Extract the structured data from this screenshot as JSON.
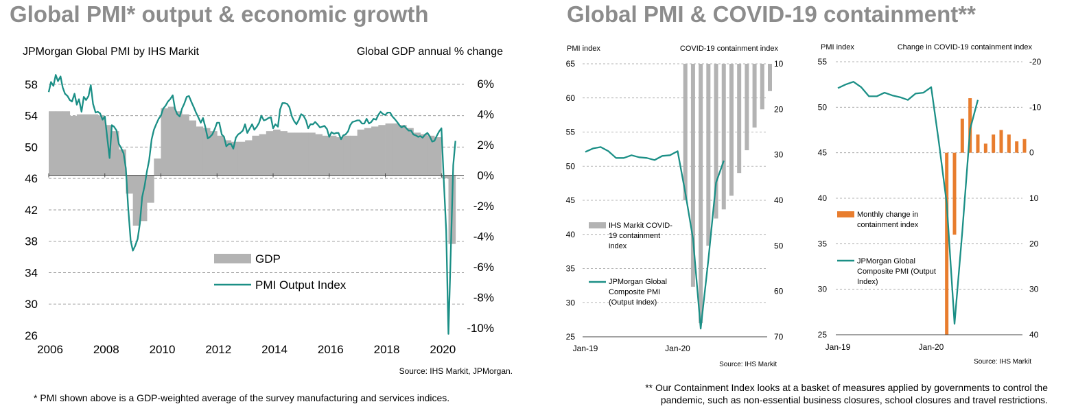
{
  "titles": {
    "left": "Global PMI* output & economic growth",
    "right": "Global PMI & COVID-19 containment**"
  },
  "footnotes": {
    "left": "* PMI shown above is a GDP-weighted average of the survey manufacturing and services indices.",
    "right_line1": "** Our Containment Index looks at a basket of measures applied by governments to control the",
    "right_line2": "pandemic, such as non-essential business closures, school closures and travel restrictions."
  },
  "colors": {
    "teal": "#1b8f86",
    "gray_bar": "#b3b3b3",
    "orange": "#e87d2e",
    "title": "#8c8c8c"
  },
  "chart_data": [
    {
      "type": "bar+line",
      "left_axis_title": "JPMorgan  Global PMI by IHS Markit",
      "right_axis_title": "Global GDP annual % change",
      "source": "Source: IHS Markit, JPMorgan.",
      "x_ticks": [
        "2006",
        "2008",
        "2010",
        "2012",
        "2014",
        "2016",
        "2018",
        "2020"
      ],
      "pmi_range": [
        26,
        60
      ],
      "pmi_ticks": [
        "58",
        "54",
        "50",
        "46",
        "42",
        "38",
        "34",
        "30",
        "26"
      ],
      "gdp_range": [
        -10.5,
        7
      ],
      "gdp_ticks": [
        "6%",
        "4%",
        "2%",
        "0%",
        "-2%",
        "-4%",
        "-6%",
        "-8%",
        "-10%"
      ],
      "legend": {
        "gdp": "GDP",
        "pmi": "PMI Output Index"
      },
      "gdp": {
        "x": [
          2006.0,
          2006.25,
          2006.5,
          2006.75,
          2007.0,
          2007.25,
          2007.5,
          2007.75,
          2008.0,
          2008.25,
          2008.5,
          2008.75,
          2009.0,
          2009.25,
          2009.5,
          2009.75,
          2010.0,
          2010.25,
          2010.5,
          2010.75,
          2011.0,
          2011.25,
          2011.5,
          2011.75,
          2012.0,
          2012.25,
          2012.5,
          2012.75,
          2013.0,
          2013.25,
          2013.5,
          2013.75,
          2014.0,
          2014.25,
          2014.5,
          2014.75,
          2015.0,
          2015.25,
          2015.5,
          2015.75,
          2016.0,
          2016.25,
          2016.5,
          2016.75,
          2017.0,
          2017.25,
          2017.5,
          2017.75,
          2018.0,
          2018.25,
          2018.5,
          2018.75,
          2019.0,
          2019.25,
          2019.5,
          2019.75,
          2020.0,
          2020.25
        ],
        "values": [
          4.2,
          4.2,
          4.2,
          3.9,
          4.0,
          4.0,
          4.0,
          3.9,
          3.3,
          2.9,
          1.7,
          -1.2,
          -3.3,
          -3.0,
          -1.8,
          1.1,
          4.4,
          4.5,
          4.2,
          4.0,
          3.6,
          3.2,
          3.1,
          2.9,
          2.6,
          2.3,
          2.2,
          2.2,
          2.3,
          2.6,
          2.7,
          2.9,
          3.0,
          2.9,
          2.8,
          2.8,
          2.8,
          2.8,
          2.7,
          2.6,
          2.6,
          2.5,
          2.6,
          2.6,
          3.0,
          3.1,
          3.2,
          3.3,
          3.4,
          3.4,
          3.3,
          3.1,
          2.8,
          2.7,
          2.6,
          2.5,
          -0.2,
          -4.5
        ]
      },
      "pmi": {
        "x": [
          2006.0,
          2006.08,
          2006.17,
          2006.25,
          2006.33,
          2006.42,
          2006.5,
          2006.58,
          2006.67,
          2006.75,
          2006.83,
          2006.92,
          2007.0,
          2007.08,
          2007.17,
          2007.25,
          2007.33,
          2007.42,
          2007.5,
          2007.58,
          2007.67,
          2007.75,
          2007.83,
          2007.92,
          2008.0,
          2008.08,
          2008.17,
          2008.25,
          2008.33,
          2008.42,
          2008.5,
          2008.58,
          2008.67,
          2008.75,
          2008.83,
          2008.92,
          2009.0,
          2009.08,
          2009.17,
          2009.25,
          2009.33,
          2009.42,
          2009.5,
          2009.58,
          2009.67,
          2009.75,
          2009.83,
          2009.92,
          2010.0,
          2010.08,
          2010.17,
          2010.25,
          2010.33,
          2010.42,
          2010.5,
          2010.58,
          2010.67,
          2010.75,
          2010.83,
          2010.92,
          2011.0,
          2011.08,
          2011.17,
          2011.25,
          2011.33,
          2011.42,
          2011.5,
          2011.58,
          2011.67,
          2011.75,
          2011.83,
          2011.92,
          2012.0,
          2012.08,
          2012.17,
          2012.25,
          2012.33,
          2012.42,
          2012.5,
          2012.58,
          2012.67,
          2012.75,
          2012.83,
          2012.92,
          2013.0,
          2013.08,
          2013.17,
          2013.25,
          2013.33,
          2013.42,
          2013.5,
          2013.58,
          2013.67,
          2013.75,
          2013.83,
          2013.92,
          2014.0,
          2014.08,
          2014.17,
          2014.25,
          2014.33,
          2014.42,
          2014.5,
          2014.58,
          2014.67,
          2014.75,
          2014.83,
          2014.92,
          2015.0,
          2015.08,
          2015.17,
          2015.25,
          2015.33,
          2015.42,
          2015.5,
          2015.58,
          2015.67,
          2015.75,
          2015.83,
          2015.92,
          2016.0,
          2016.08,
          2016.17,
          2016.25,
          2016.33,
          2016.42,
          2016.5,
          2016.58,
          2016.67,
          2016.75,
          2016.83,
          2016.92,
          2017.0,
          2017.08,
          2017.17,
          2017.25,
          2017.33,
          2017.42,
          2017.5,
          2017.58,
          2017.67,
          2017.75,
          2017.83,
          2017.92,
          2018.0,
          2018.08,
          2018.17,
          2018.25,
          2018.33,
          2018.42,
          2018.5,
          2018.58,
          2018.67,
          2018.75,
          2018.83,
          2018.92,
          2019.0,
          2019.08,
          2019.17,
          2019.25,
          2019.33,
          2019.42,
          2019.5,
          2019.58,
          2019.67,
          2019.75,
          2019.83,
          2019.92,
          2020.0,
          2020.08,
          2020.17,
          2020.25,
          2020.33,
          2020.42,
          2020.5
        ],
        "values": [
          57.0,
          58.3,
          57.8,
          59.2,
          58.4,
          59.0,
          57.6,
          56.8,
          56.5,
          56.0,
          55.8,
          56.8,
          55.4,
          56.1,
          54.5,
          56.4,
          56.0,
          56.5,
          57.9,
          55.5,
          54.4,
          54.5,
          54.3,
          53.5,
          53.9,
          51.4,
          48.6,
          52.8,
          52.6,
          52.1,
          50.4,
          49.9,
          49.2,
          47.3,
          42.4,
          38.1,
          36.8,
          37.4,
          38.3,
          40.3,
          43.6,
          45.1,
          46.9,
          48.3,
          51.0,
          52.2,
          52.9,
          53.6,
          54.0,
          54.9,
          55.3,
          55.8,
          56.1,
          56.6,
          54.9,
          54.2,
          53.9,
          54.9,
          55.5,
          56.4,
          56.5,
          55.8,
          55.1,
          54.4,
          53.8,
          53.1,
          53.7,
          52.6,
          51.1,
          51.3,
          51.6,
          52.3,
          53.1,
          53.1,
          51.6,
          51.3,
          50.1,
          50.4,
          50.4,
          49.8,
          51.2,
          51.6,
          51.8,
          52.1,
          52.9,
          51.8,
          52.4,
          52.9,
          52.2,
          52.6,
          53.1,
          54.0,
          53.4,
          53.5,
          53.7,
          53.8,
          52.4,
          52.9,
          52.6,
          54.8,
          55.6,
          55.6,
          55.5,
          55.1,
          53.9,
          53.3,
          52.9,
          53.5,
          54.2,
          54.0,
          53.4,
          52.4,
          52.9,
          52.9,
          53.2,
          52.9,
          52.5,
          52.6,
          52.7,
          52.3,
          51.3,
          51.9,
          51.7,
          51.8,
          51.8,
          51.0,
          51.5,
          51.6,
          52.0,
          52.8,
          53.2,
          53.3,
          53.4,
          53.4,
          53.0,
          53.0,
          53.6,
          53.0,
          53.2,
          53.6,
          53.5,
          54.1,
          54.5,
          54.2,
          54.1,
          54.4,
          54.4,
          53.9,
          53.6,
          53.2,
          52.8,
          52.5,
          52.7,
          52.4,
          52.1,
          52.1,
          51.6,
          51.5,
          51.3,
          51.4,
          51.2,
          51.6,
          51.8,
          51.4,
          50.7,
          50.8,
          51.4,
          52.0,
          52.4,
          46.0,
          39.4,
          26.2,
          36.3,
          47.7,
          50.8
        ]
      }
    },
    {
      "type": "bar+line",
      "left_axis_title": "PMI index",
      "right_axis_title": "COVID-19 containment index",
      "source": "Source: IHS Markit",
      "x_ticks": [
        "Jan-19",
        "Jan-20"
      ],
      "pmi_range": [
        25,
        65
      ],
      "pmi_ticks": [
        "65",
        "60",
        "55",
        "50",
        "45",
        "40",
        "35",
        "30",
        "25"
      ],
      "containment_range_inverted": [
        10,
        70
      ],
      "containment_ticks": [
        "10",
        "20",
        "30",
        "40",
        "50",
        "60",
        "70"
      ],
      "legend": {
        "bars": "IHS Markit COVID-19 containment index",
        "bars_lines": [
          "IHS Markit COVID-",
          "19 containment",
          "index"
        ],
        "line": "JPMorgan Global Composite PMI (Output Index)",
        "line_lines": [
          "JPMorgan Global",
          "Composite PMI",
          "(Output Index)"
        ]
      },
      "x_months": [
        "Jan-19",
        "Feb-19",
        "Mar-19",
        "Apr-19",
        "May-19",
        "Jun-19",
        "Jul-19",
        "Aug-19",
        "Sep-19",
        "Oct-19",
        "Nov-19",
        "Dec-19",
        "Jan-20",
        "Feb-20",
        "Mar-20",
        "Apr-20",
        "May-20",
        "Jun-20",
        "Jul-20",
        "Aug-20",
        "Sep-20",
        "Oct-20",
        "Nov-20",
        "Dec-20",
        "Jan-21"
      ],
      "pmi_values": [
        52.1,
        52.6,
        52.8,
        52.2,
        51.2,
        51.2,
        51.6,
        51.3,
        51.2,
        50.9,
        51.5,
        51.6,
        52.2,
        46.1,
        39.4,
        26.2,
        36.3,
        47.6,
        50.8,
        null,
        null,
        null,
        null,
        null,
        null
      ],
      "containment_values": [
        null,
        null,
        null,
        null,
        null,
        null,
        null,
        null,
        null,
        null,
        null,
        null,
        null,
        40.0,
        59.0,
        67.0,
        50.0,
        44.0,
        42.0,
        39.0,
        34.0,
        29.0,
        24.0,
        20.0,
        16.0
      ]
    },
    {
      "type": "bar+line",
      "left_axis_title": "PMI index",
      "right_axis_title": "Change in COVID-19 containment index",
      "source": "Source: IHS Markit",
      "x_ticks": [
        "Jan-19",
        "Jan-20"
      ],
      "pmi_range": [
        25,
        55
      ],
      "pmi_ticks": [
        "55",
        "50",
        "45",
        "40",
        "35",
        "30",
        "25"
      ],
      "change_range_inverted": [
        -20,
        40
      ],
      "change_ticks": [
        "-20",
        "-10",
        "0",
        "10",
        "20",
        "30",
        "40"
      ],
      "legend": {
        "bars": "Monthly change in containment index",
        "bars_lines": [
          "Monthly change in",
          "containment index"
        ],
        "line": "JPMorgan Global Composite PMI (Output Index)",
        "line_lines": [
          "JPMorgan Global",
          "Composite PMI (Output",
          "Index)"
        ]
      },
      "x_months": [
        "Jan-19",
        "Feb-19",
        "Mar-19",
        "Apr-19",
        "May-19",
        "Jun-19",
        "Jul-19",
        "Aug-19",
        "Sep-19",
        "Oct-19",
        "Nov-19",
        "Dec-19",
        "Jan-20",
        "Feb-20",
        "Mar-20",
        "Apr-20",
        "May-20",
        "Jun-20",
        "Jul-20",
        "Aug-20",
        "Sep-20",
        "Oct-20",
        "Nov-20",
        "Dec-20",
        "Jan-21"
      ],
      "pmi_values": [
        52.1,
        52.5,
        52.8,
        52.2,
        51.2,
        51.2,
        51.6,
        51.3,
        51.1,
        50.8,
        51.5,
        51.6,
        52.2,
        46.1,
        39.4,
        26.2,
        36.3,
        47.6,
        50.8,
        null,
        null,
        null,
        null,
        null,
        null
      ],
      "change_values": [
        null,
        null,
        null,
        null,
        null,
        null,
        null,
        null,
        null,
        null,
        null,
        null,
        null,
        null,
        40.0,
        18.0,
        -7.5,
        -12.0,
        -4.0,
        -2.0,
        -4.0,
        -5.0,
        -4.0,
        -2.5,
        -3.0
      ]
    }
  ]
}
